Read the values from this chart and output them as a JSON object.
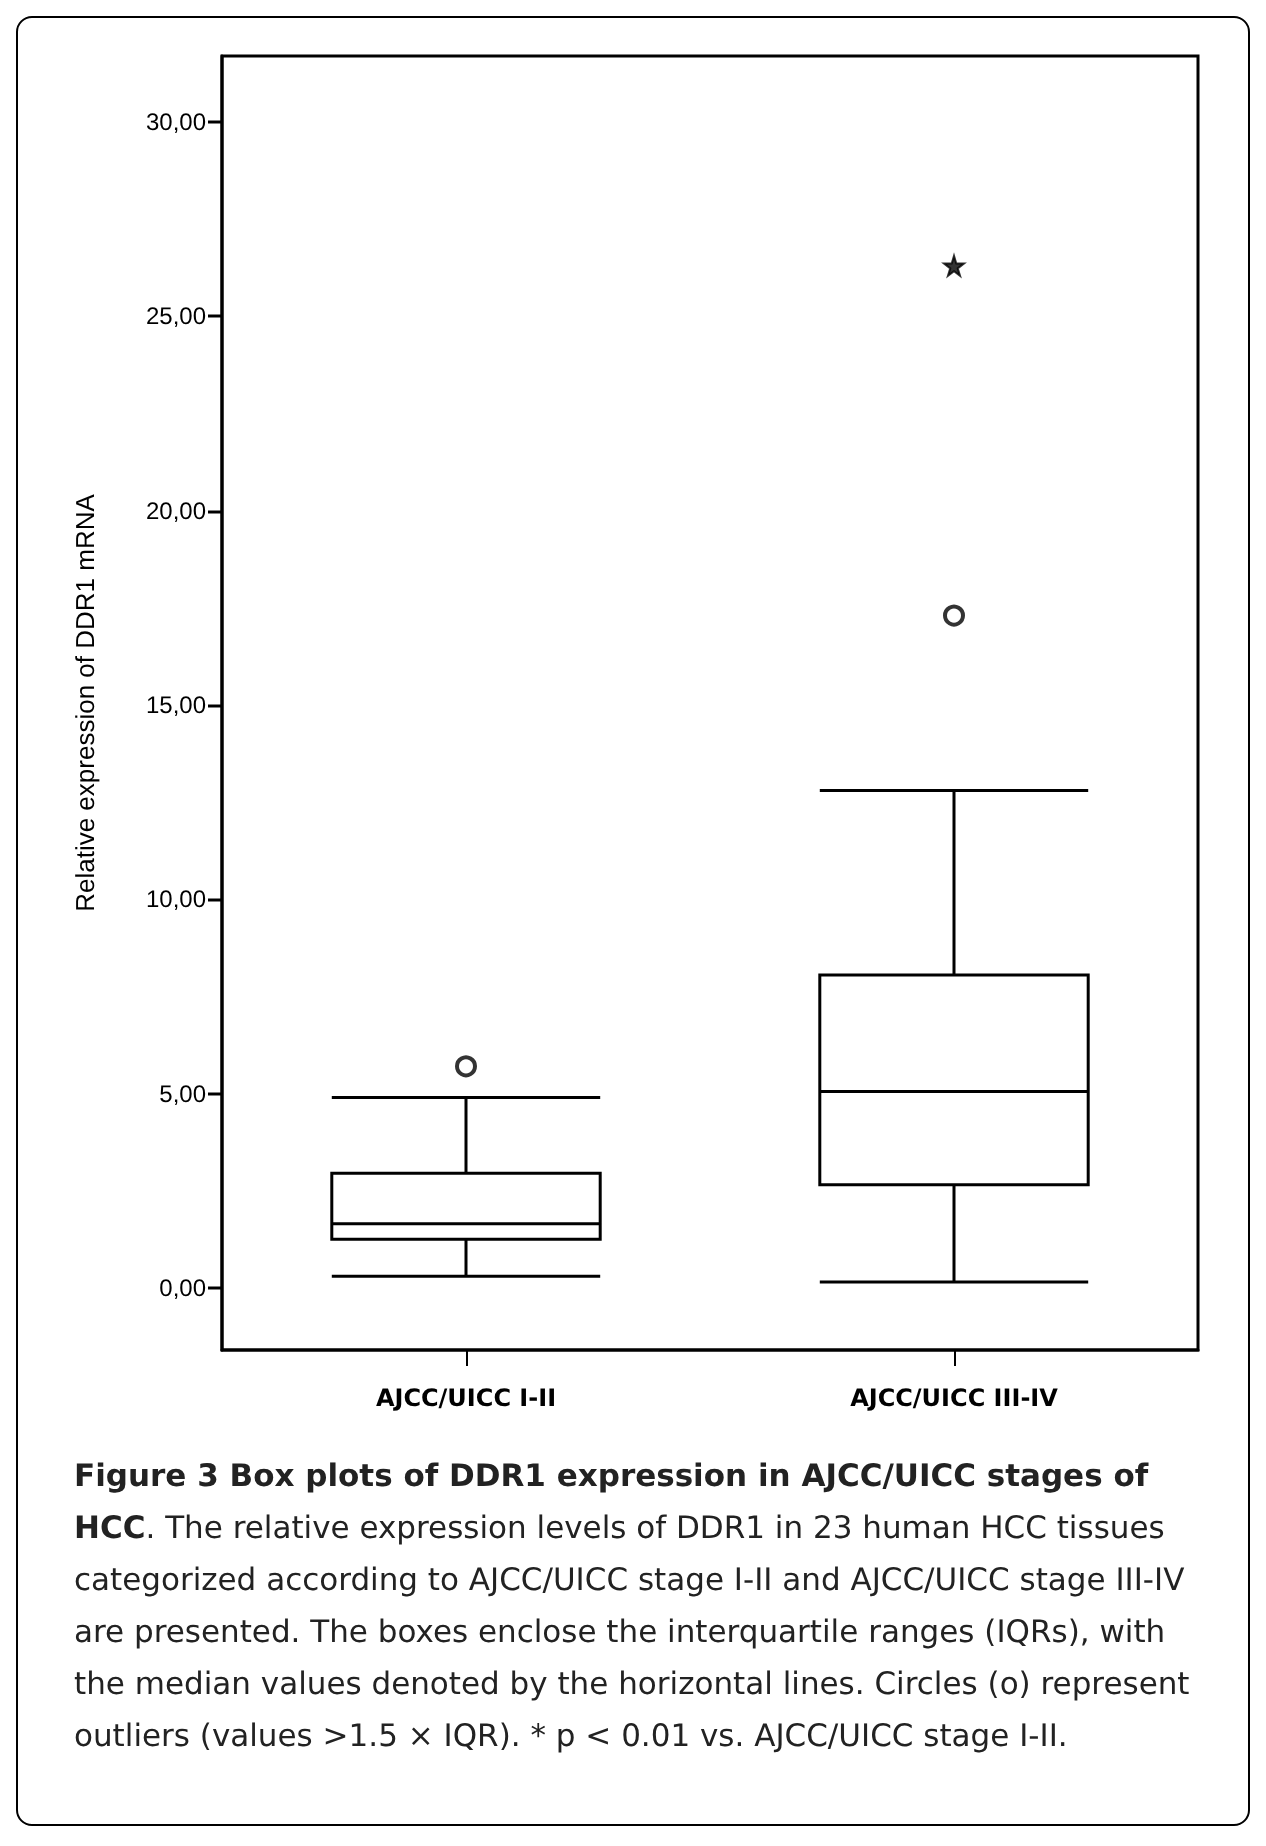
{
  "chart_data": {
    "type": "box",
    "title": "Figure 3 Box plots of DDR1 expression in AJCC/UICC stages of HCC",
    "ylabel": "Relative expression of DDR1 mRNA",
    "categories": [
      "AJCC/UICC I-II",
      "AJCC/UICC III-IV"
    ],
    "series": [
      {
        "color": "#000000",
        "boxes": [
          {
            "low": 0.3,
            "q1": 1.25,
            "median": 1.65,
            "q3": 2.95,
            "high": 4.9,
            "outliers": [
              5.7
            ]
          },
          {
            "low": 0.15,
            "q1": 2.65,
            "median": 5.05,
            "q3": 8.05,
            "high": 12.8,
            "outliers": [
              17.3
            ]
          }
        ]
      },
      {
        "type": "scatter",
        "marker": "star",
        "color": "#000000",
        "x": [
          "AJCC/UICC III-IV"
        ],
        "values": [
          26.3
        ]
      }
    ],
    "ylim": [
      -1.6,
      31.7
    ],
    "yticks": [
      {
        "value": 0,
        "label": "0,00"
      },
      {
        "value": 5,
        "label": "5,00"
      },
      {
        "value": 10,
        "label": "10,00"
      },
      {
        "value": 15,
        "label": "15,00"
      },
      {
        "value": 20,
        "label": "20,00"
      },
      {
        "value": 25,
        "label": "25,00"
      },
      {
        "value": 30,
        "label": "30,00"
      }
    ],
    "marker": "circle",
    "annotations": [
      ". The relative expression levels of DDR1 in 23 human HCC tissues categorized according to AJCC/UICC stage I-II and AJCC/UICC stage III-IV are presented. The boxes enclose the interquartile ranges (IQRs), with the median values denoted by the horizontal lines. Circles (o) represent outliers (values >1.5 × IQR). * p < 0.01 vs. AJCC/UICC stage I-II."
    ]
  }
}
